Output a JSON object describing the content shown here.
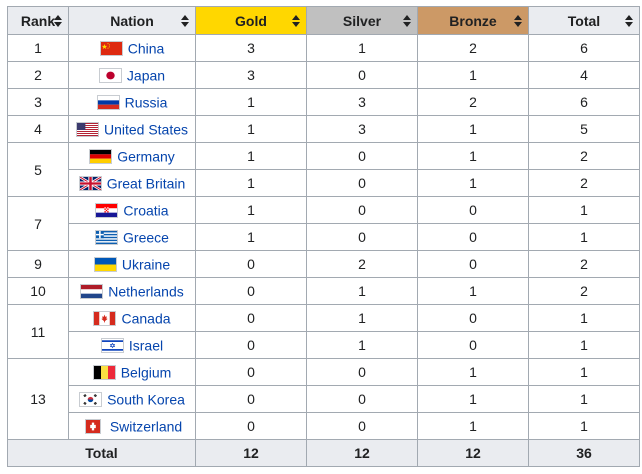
{
  "headers": {
    "rank": "Rank",
    "nation": "Nation",
    "gold": "Gold",
    "silver": "Silver",
    "bronze": "Bronze",
    "total": "Total"
  },
  "colors": {
    "gold": "#ffd700",
    "silver": "#c0c0c0",
    "bronze": "#cc9966",
    "link": "#0645ad"
  },
  "rows": [
    {
      "rank": "1",
      "nation": "China",
      "flag": "china-flag-icon",
      "gold": "3",
      "silver": "1",
      "bronze": "2",
      "total": "6"
    },
    {
      "rank": "2",
      "nation": "Japan",
      "flag": "japan-flag-icon",
      "gold": "3",
      "silver": "0",
      "bronze": "1",
      "total": "4"
    },
    {
      "rank": "3",
      "nation": "Russia",
      "flag": "russia-flag-icon",
      "gold": "1",
      "silver": "3",
      "bronze": "2",
      "total": "6"
    },
    {
      "rank": "4",
      "nation": "United States",
      "flag": "united-states-flag-icon",
      "gold": "1",
      "silver": "3",
      "bronze": "1",
      "total": "5"
    },
    {
      "rank": "5",
      "nation": "Germany",
      "flag": "germany-flag-icon",
      "gold": "1",
      "silver": "0",
      "bronze": "1",
      "total": "2"
    },
    {
      "rank": "",
      "nation": "Great Britain",
      "flag": "great-britain-flag-icon",
      "gold": "1",
      "silver": "0",
      "bronze": "1",
      "total": "2"
    },
    {
      "rank": "7",
      "nation": "Croatia",
      "flag": "croatia-flag-icon",
      "gold": "1",
      "silver": "0",
      "bronze": "0",
      "total": "1"
    },
    {
      "rank": "",
      "nation": "Greece",
      "flag": "greece-flag-icon",
      "gold": "1",
      "silver": "0",
      "bronze": "0",
      "total": "1"
    },
    {
      "rank": "9",
      "nation": "Ukraine",
      "flag": "ukraine-flag-icon",
      "gold": "0",
      "silver": "2",
      "bronze": "0",
      "total": "2"
    },
    {
      "rank": "10",
      "nation": "Netherlands",
      "flag": "netherlands-flag-icon",
      "gold": "0",
      "silver": "1",
      "bronze": "1",
      "total": "2"
    },
    {
      "rank": "11",
      "nation": "Canada",
      "flag": "canada-flag-icon",
      "gold": "0",
      "silver": "1",
      "bronze": "0",
      "total": "1"
    },
    {
      "rank": "",
      "nation": "Israel",
      "flag": "israel-flag-icon",
      "gold": "0",
      "silver": "1",
      "bronze": "0",
      "total": "1"
    },
    {
      "rank": "13",
      "nation": "Belgium",
      "flag": "belgium-flag-icon",
      "gold": "0",
      "silver": "0",
      "bronze": "1",
      "total": "1"
    },
    {
      "rank": "",
      "nation": "South Korea",
      "flag": "south-korea-flag-icon",
      "gold": "0",
      "silver": "0",
      "bronze": "1",
      "total": "1"
    },
    {
      "rank": "",
      "nation": "Switzerland",
      "flag": "switzerland-flag-icon",
      "gold": "0",
      "silver": "0",
      "bronze": "1",
      "total": "1"
    }
  ],
  "totals": {
    "label": "Total",
    "gold": "12",
    "silver": "12",
    "bronze": "12",
    "total": "36"
  }
}
